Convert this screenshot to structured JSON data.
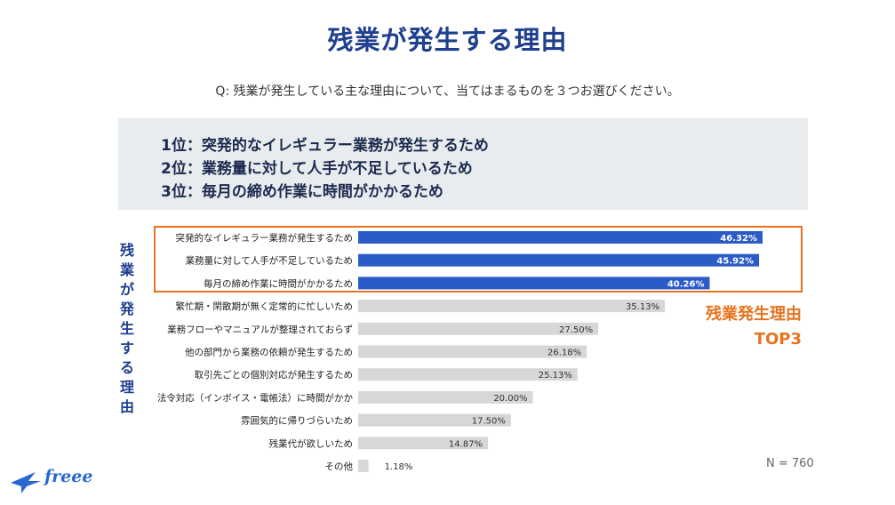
{
  "title": "残業が発生する理由",
  "subtitle": "Q: 残業が発生している主な理由について、当てはまるものを３つお選びください。",
  "summary": {
    "line1": "1位：突発的なイレギュラー業務が発生するため",
    "line2": "2位：業務量に対して人手が不足しているため",
    "line3": "3位：毎月の締め作業に時間がかかるため"
  },
  "side_label": [
    "残",
    "業",
    "が",
    "発",
    "生",
    "す",
    "る",
    "理",
    "由"
  ],
  "top3_label": {
    "line1": "残業発生理由",
    "line2": "TOP3"
  },
  "n_label": "N = 760",
  "logo_text": "freee",
  "colors": {
    "title": "#1f3f8f",
    "top_bar": "#2a5bc7",
    "other_bar": "#d9d6d6",
    "accent": "#e8731f"
  },
  "chart_data": {
    "type": "bar",
    "orientation": "horizontal",
    "categories": [
      "突発的なイレギュラー業務が発生するため",
      "業務量に対して人手が不足しているため",
      "毎月の締め作業に時間がかかるため",
      "繁忙期・閑散期が無く定常的に忙しいため",
      "業務フローやマニュアルが整理されておらず",
      "他の部門から業務の依頼が発生するため",
      "取引先ごとの個別対応が発生するため",
      "法令対応（インボイス・電帳法）に時間がかか",
      "雰囲気的に帰りづらいため",
      "残業代が欲しいため",
      "その他"
    ],
    "values": [
      46.32,
      45.92,
      40.26,
      35.13,
      27.5,
      26.18,
      25.13,
      20.0,
      17.5,
      14.87,
      1.18
    ],
    "value_labels": [
      "46.32%",
      "45.92%",
      "40.26%",
      "35.13%",
      "27.50%",
      "26.18%",
      "25.13%",
      "20.00%",
      "17.50%",
      "14.87%",
      "1.18%"
    ],
    "highlight_count": 3,
    "xlim": [
      0,
      50
    ],
    "unit": "%",
    "title": "残業が発生する理由"
  }
}
